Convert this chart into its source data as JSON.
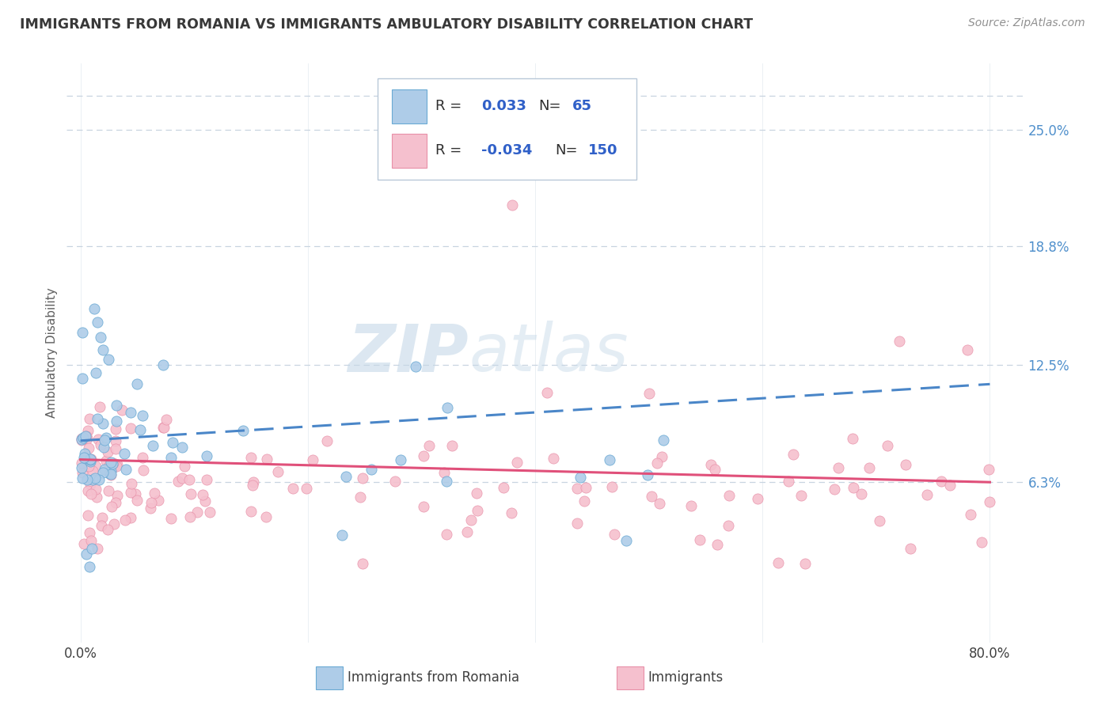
{
  "title": "IMMIGRANTS FROM ROMANIA VS IMMIGRANTS AMBULATORY DISABILITY CORRELATION CHART",
  "source": "Source: ZipAtlas.com",
  "ylabel": "Ambulatory Disability",
  "yticks": [
    0.063,
    0.125,
    0.188,
    0.25
  ],
  "ytick_labels": [
    "6.3%",
    "12.5%",
    "18.8%",
    "25.0%"
  ],
  "blue_color": "#aecce8",
  "blue_edge_color": "#6aaad4",
  "pink_color": "#f5c0ce",
  "pink_edge_color": "#e890a8",
  "blue_line_color": "#4a86c8",
  "pink_line_color": "#e0507a",
  "watermark_color": "#dce8f0",
  "grid_color": "#c8d4e0",
  "background_color": "#ffffff",
  "title_color": "#383838",
  "tick_color": "#5090cc",
  "xtick_color": "#404040",
  "ylabel_color": "#606060",
  "xlim": [
    0.0,
    0.8
  ],
  "ylim": [
    0.0,
    0.28
  ],
  "scatter_size": 90,
  "line_width": 2.2
}
